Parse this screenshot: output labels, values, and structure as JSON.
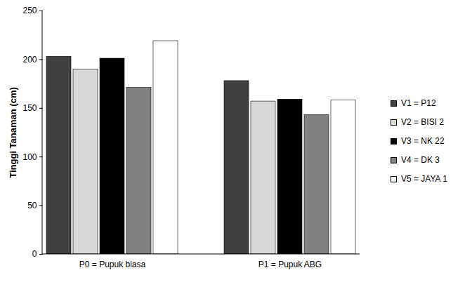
{
  "chart_data": {
    "type": "bar",
    "categories": [
      "P0 = Pupuk biasa",
      "P1 = Pupuk ABG"
    ],
    "series": [
      {
        "name": "V1 = P12",
        "color": "#404040",
        "values": [
          203,
          178
        ]
      },
      {
        "name": "V2 = BISI 2",
        "color": "#d9d9d9",
        "values": [
          190,
          157
        ]
      },
      {
        "name": "V3 = NK 22",
        "color": "#000000",
        "values": [
          201,
          159
        ]
      },
      {
        "name": "V4 = DK 3",
        "color": "#808080",
        "values": [
          171,
          143
        ]
      },
      {
        "name": "V5 = JAYA 1",
        "color": "#ffffff",
        "values": [
          219,
          158
        ]
      }
    ],
    "ylabel": "Tinggi Tanaman (cm)",
    "ylim": [
      0,
      250
    ],
    "yticks": [
      0,
      50,
      100,
      150,
      200,
      250
    ],
    "grid": false,
    "legend": "right"
  }
}
